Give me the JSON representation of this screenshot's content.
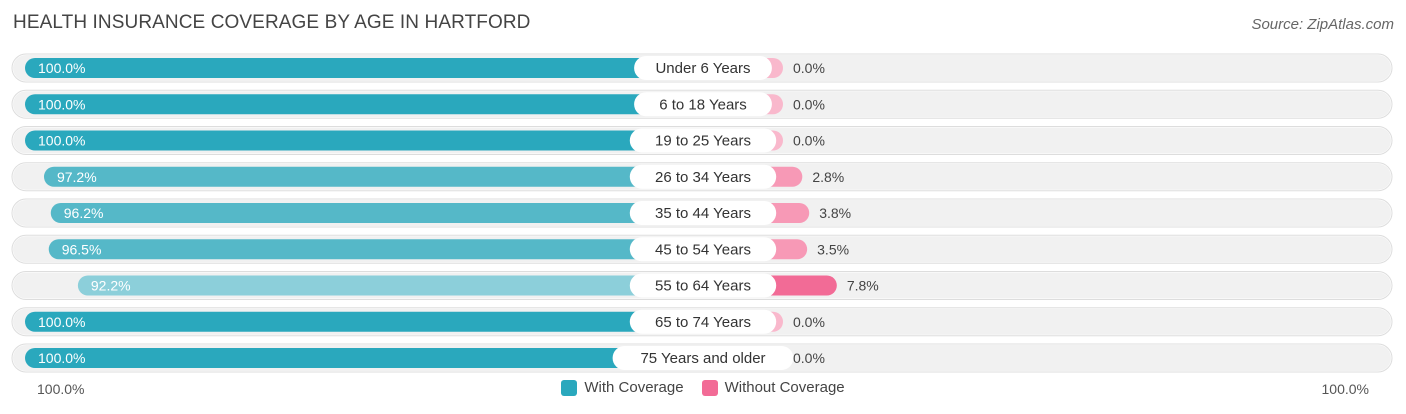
{
  "title": "HEALTH INSURANCE COVERAGE BY AGE IN HARTFORD",
  "source": "Source: ZipAtlas.com",
  "axis": {
    "left_label": "100.0%",
    "right_label": "100.0%"
  },
  "legend": {
    "with_label": "With Coverage",
    "without_label": "Without Coverage"
  },
  "colors": {
    "with_strong": "#2aa8bd",
    "with_medium": "#55b8c8",
    "with_light": "#8ccfda",
    "without_strong": "#f26b96",
    "without_medium": "#f799b6",
    "without_light": "#f9b8cc",
    "track": "#f1f1f1"
  },
  "chart_data": {
    "type": "bar",
    "title": "HEALTH INSURANCE COVERAGE BY AGE IN HARTFORD",
    "orientation": "horizontal-diverging",
    "categories": [
      "Under 6 Years",
      "6 to 18 Years",
      "19 to 25 Years",
      "26 to 34 Years",
      "35 to 44 Years",
      "45 to 54 Years",
      "55 to 64 Years",
      "65 to 74 Years",
      "75 Years and older"
    ],
    "series": [
      {
        "name": "With Coverage",
        "values": [
          100.0,
          100.0,
          100.0,
          97.2,
          96.2,
          96.5,
          92.2,
          100.0,
          100.0
        ],
        "labels": [
          "100.0%",
          "100.0%",
          "100.0%",
          "97.2%",
          "96.2%",
          "96.5%",
          "92.2%",
          "100.0%",
          "100.0%"
        ]
      },
      {
        "name": "Without Coverage",
        "values": [
          0.0,
          0.0,
          0.0,
          2.8,
          3.8,
          3.5,
          7.8,
          0.0,
          0.0
        ],
        "labels": [
          "0.0%",
          "0.0%",
          "0.0%",
          "2.8%",
          "3.8%",
          "3.5%",
          "7.8%",
          "0.0%",
          "0.0%"
        ]
      }
    ],
    "xlim": [
      0,
      100
    ],
    "legend_position": "bottom-center"
  }
}
